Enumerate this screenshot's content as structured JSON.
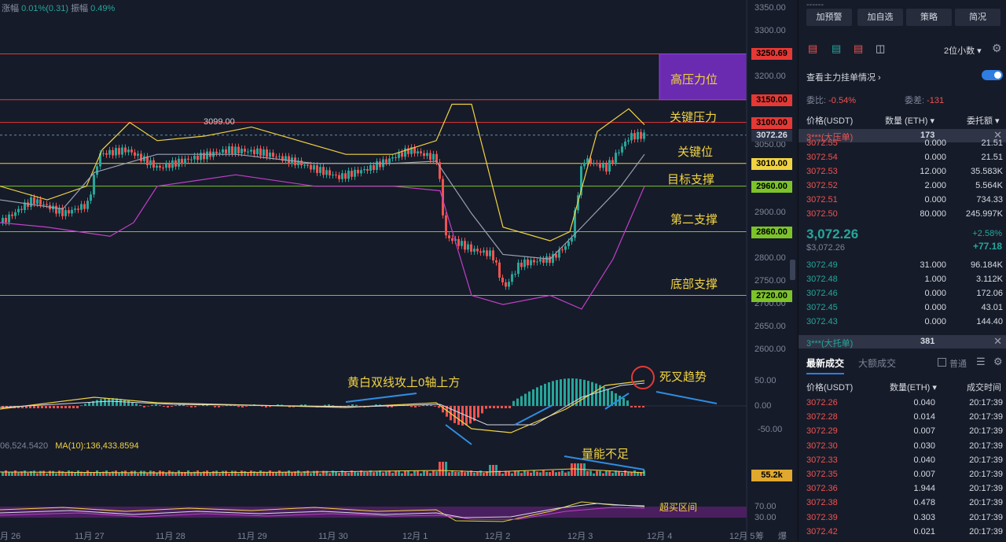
{
  "top_info": {
    "change_label": "涨幅",
    "change_value": "0.01%(0.31)",
    "amp_label": "振幅",
    "amp_value": "0.49%"
  },
  "price_axis": [
    "3350.00",
    "3300.00",
    "3250.00",
    "3200.00",
    "3150.00",
    "3100.00",
    "3050.00",
    "3000.00",
    "2950.00",
    "2900.00",
    "2850.00",
    "2800.00",
    "2750.00",
    "2700.00",
    "2650.00",
    "2600.00"
  ],
  "macd_axis": [
    "50.00",
    "0.00",
    "-50.00"
  ],
  "rsi_axis": [
    "70.00",
    "30.00"
  ],
  "level_labels": [
    {
      "value": "3250.69",
      "color": "#e53935"
    },
    {
      "value": "3150.00",
      "color": "#e53935"
    },
    {
      "value": "3100.00",
      "color": "#e53935"
    },
    {
      "value": "3072.26",
      "color": "#2a3144"
    },
    {
      "value": "3010.00",
      "color": "#f0d342"
    },
    {
      "value": "2960.00",
      "color": "#7cc32a"
    },
    {
      "value": "2860.00",
      "color": "#7cc32a"
    },
    {
      "value": "2720.00",
      "color": "#7cc32a"
    }
  ],
  "vol_label": "55.2k",
  "annotations": {
    "high_pressure": "高压力位",
    "key_pressure": "关键压力",
    "key_level": "关键位",
    "target_support": "目标支撑",
    "second_support": "第二支撑",
    "bottom_support": "底部支撑",
    "macd_note": "黄白双线攻上0轴上方",
    "dead_cross": "死叉趋势",
    "volume_note": "量能不足",
    "overbought": "超买区间",
    "peak": "3099.00"
  },
  "volume_ma": {
    "left": "06,524.5420",
    "ma10": "MA(10):136,433.8594"
  },
  "x_ticks": [
    "月 26",
    "11月 27",
    "11月 28",
    "11月 29",
    "11月 30",
    "12月 1",
    "12月 2",
    "12月 3",
    "12月 4",
    "12月 5"
  ],
  "x_suffix": [
    "筹",
    "爆"
  ],
  "side": {
    "buttons": [
      "加预警",
      "加自选",
      "策略",
      "简况"
    ],
    "decimal": "2位小数",
    "order_info": "查看主力挂单情况",
    "wei_bi_label": "委比:",
    "wei_bi": "-0.54%",
    "wei_cha_label": "委差:",
    "wei_cha": "-131",
    "headers": {
      "price": "价格(USDT)",
      "qty": "数量 (ETH)",
      "total": "委托额"
    },
    "big_ask": {
      "label": "3***(大压单)",
      "qty": "173"
    },
    "asks": [
      {
        "price": "3072.55",
        "qty": "0.000",
        "total": "21.51"
      },
      {
        "price": "3072.54",
        "qty": "0.000",
        "total": "21.51"
      },
      {
        "price": "3072.53",
        "qty": "12.000",
        "total": "35.583K"
      },
      {
        "price": "3072.52",
        "qty": "2.000",
        "total": "5.564K"
      },
      {
        "price": "3072.51",
        "qty": "0.000",
        "total": "734.33"
      },
      {
        "price": "3072.50",
        "qty": "80.000",
        "total": "245.997K"
      }
    ],
    "last_price": "3,072.26",
    "last_usd": "$3,072.26",
    "pct": "+2.58%",
    "chg": "+77.18",
    "bids": [
      {
        "price": "3072.49",
        "qty": "31.000",
        "total": "96.184K"
      },
      {
        "price": "3072.48",
        "qty": "1.000",
        "total": "3.112K"
      },
      {
        "price": "3072.46",
        "qty": "0.000",
        "total": "172.06"
      },
      {
        "price": "3072.45",
        "qty": "0.000",
        "total": "43.01"
      },
      {
        "price": "3072.43",
        "qty": "0.000",
        "total": "144.40"
      }
    ],
    "big_bid": {
      "label": "3***(大托单)",
      "qty": "381"
    },
    "trade_tabs": [
      "最新成交",
      "大额成交"
    ],
    "normal": "普通",
    "trade_headers": {
      "price": "价格(USDT)",
      "qty": "数量(ETH)",
      "time": "成交时间"
    },
    "trades": [
      {
        "price": "3072.26",
        "qty": "0.040",
        "time": "20:17:39"
      },
      {
        "price": "3072.28",
        "qty": "0.014",
        "time": "20:17:39"
      },
      {
        "price": "3072.29",
        "qty": "0.007",
        "time": "20:17:39"
      },
      {
        "price": "3072.30",
        "qty": "0.030",
        "time": "20:17:39"
      },
      {
        "price": "3072.33",
        "qty": "0.040",
        "time": "20:17:39"
      },
      {
        "price": "3072.35",
        "qty": "0.007",
        "time": "20:17:39"
      },
      {
        "price": "3072.36",
        "qty": "1.944",
        "time": "20:17:39"
      },
      {
        "price": "3072.38",
        "qty": "0.478",
        "time": "20:17:39"
      },
      {
        "price": "3072.39",
        "qty": "0.303",
        "time": "20:17:39"
      },
      {
        "price": "3072.42",
        "qty": "0.021",
        "time": "20:17:39"
      }
    ]
  }
}
